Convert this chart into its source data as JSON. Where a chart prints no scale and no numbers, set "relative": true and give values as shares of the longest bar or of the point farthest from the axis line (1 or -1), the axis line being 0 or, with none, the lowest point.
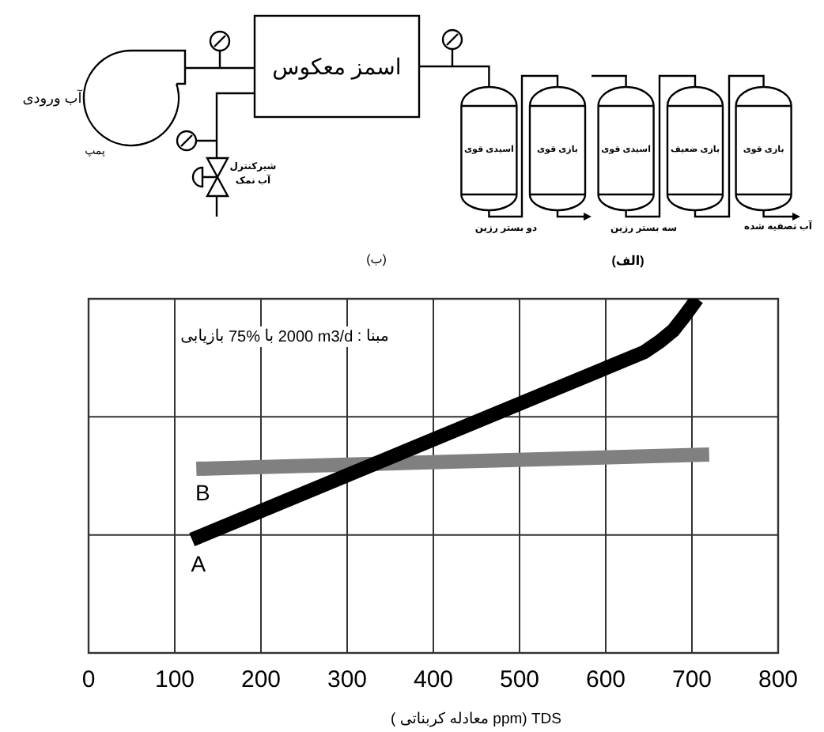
{
  "chart_data": {
    "type": "line",
    "relative": true,
    "xlabel": "TDS (ppm معادله کربناتی )",
    "xlim": [
      0,
      800
    ],
    "xticks": [
      0,
      100,
      200,
      300,
      400,
      500,
      600,
      700,
      800
    ],
    "grid": true,
    "series": [
      {
        "name": "A",
        "color": "#000000",
        "x": [
          120,
          645,
          663,
          678,
          691,
          700,
          706
        ],
        "values": [
          0.32,
          0.85,
          0.88,
          0.91,
          0.95,
          0.98,
          1
        ]
      },
      {
        "name": "B",
        "color": "#808080",
        "x": [
          125,
          720
        ],
        "values": [
          0.52,
          0.56
        ]
      }
    ],
    "annotations": [
      "آب ورودی",
      "پمپ",
      "اسمز معکوس",
      "شیرکنترل",
      "آب نمک",
      "(ب)",
      "اسیدی قوی",
      "بازی قوی",
      "اسیدی قوی",
      "بازی ضعیف",
      "بازی قوی",
      "دو بستر رزین",
      "سه بستر رزین",
      "آب تصفیه شده",
      "(الف)",
      "مبنا : 2000 m3/d با 75% بازیابی"
    ]
  }
}
